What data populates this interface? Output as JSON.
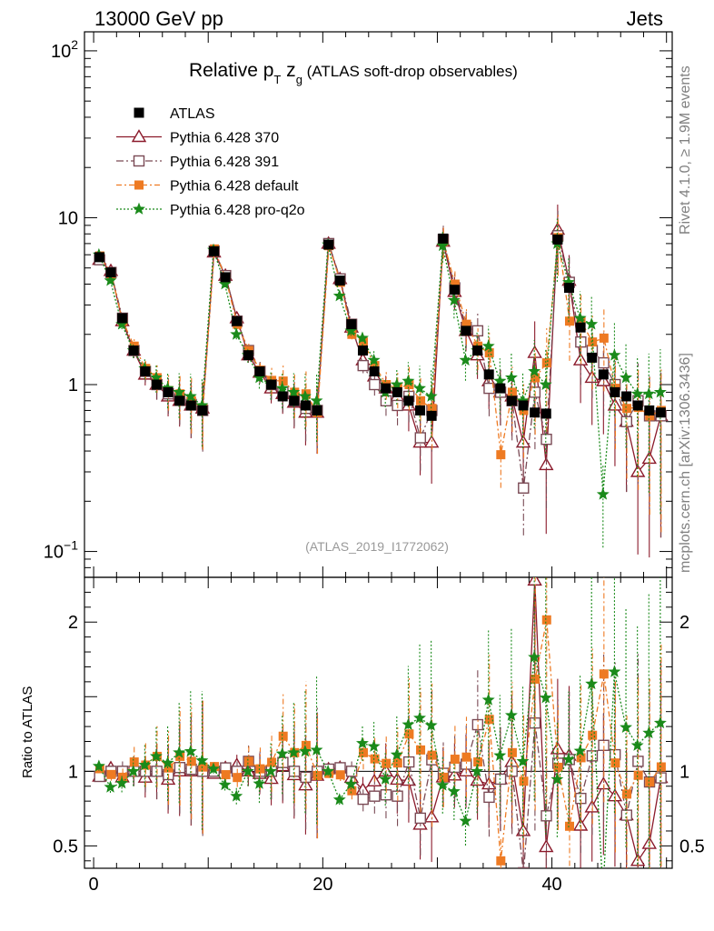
{
  "header": {
    "left": "13000 GeV pp",
    "right": "Jets"
  },
  "side_labels": {
    "top": "Rivet 4.1.0, ≥ 1.9M events",
    "bottom": "mcplots.cern.ch [arXiv:1306.3436]"
  },
  "colors": {
    "atlas": "#000000",
    "p370": "#8b1a2b",
    "p391": "#7a4a55",
    "pdefault": "#ee7a22",
    "pq2o": "#1a8a1a"
  },
  "chart_data": {
    "type": "scatter",
    "title_main": "Relative p",
    "title_sub": "T",
    "title_var": " z",
    "title_var_sub": "g",
    "title_rest": " (ATLAS soft-drop observables)",
    "analysis_tag": "(ATLAS_2019_I1772062)",
    "ratio_ylabel": "Ratio to ATLAS",
    "xlim": [
      -0.8,
      50.5
    ],
    "ylim_main": [
      0.07,
      130
    ],
    "ylim_ratio": [
      0.35,
      2.3
    ],
    "x_ticks": [
      {
        "v": 0,
        "label": "0"
      },
      {
        "v": 20,
        "label": "20"
      },
      {
        "v": 40,
        "label": "40"
      }
    ],
    "y_ticks_main": [
      {
        "v": 0.1,
        "label": "10",
        "sup": "−1"
      },
      {
        "v": 1,
        "label": "1",
        "sup": ""
      },
      {
        "v": 10,
        "label": "10",
        "sup": ""
      },
      {
        "v": 100,
        "label": "10",
        "sup": "2"
      }
    ],
    "y_ticks_ratio": [
      {
        "v": 0.5,
        "label": "0.5"
      },
      {
        "v": 1,
        "label": "1"
      },
      {
        "v": 2,
        "label": "2"
      }
    ],
    "legend": [
      {
        "name": "ATLAS",
        "key": "atlas"
      },
      {
        "name": "Pythia 6.428 370",
        "key": "p370"
      },
      {
        "name": "Pythia 6.428 391",
        "key": "p391"
      },
      {
        "name": "Pythia 6.428 default",
        "key": "pdefault"
      },
      {
        "name": "Pythia 6.428 pro-q2o",
        "key": "pq2o"
      }
    ],
    "x": [
      0.5,
      1.5,
      2.5,
      3.5,
      4.5,
      5.5,
      6.5,
      7.5,
      8.5,
      9.5,
      10.5,
      11.5,
      12.5,
      13.5,
      14.5,
      15.5,
      16.5,
      17.5,
      18.5,
      19.5,
      20.5,
      21.5,
      22.5,
      23.5,
      24.5,
      25.5,
      26.5,
      27.5,
      28.5,
      29.5,
      30.5,
      31.5,
      32.5,
      33.5,
      34.5,
      35.5,
      36.5,
      37.5,
      38.5,
      39.5,
      40.5,
      41.5,
      42.5,
      43.5,
      44.5,
      45.5,
      46.5,
      47.5,
      48.5,
      49.5
    ],
    "atlas": [
      5.8,
      4.7,
      2.5,
      1.6,
      1.2,
      1.0,
      0.9,
      0.8,
      0.75,
      0.7,
      6.3,
      4.4,
      2.4,
      1.5,
      1.2,
      1.0,
      0.85,
      0.8,
      0.75,
      0.7,
      6.9,
      4.2,
      2.3,
      1.6,
      1.2,
      0.95,
      0.9,
      0.8,
      0.7,
      0.65,
      7.5,
      3.7,
      2.1,
      1.6,
      1.15,
      0.95,
      0.8,
      0.75,
      0.68,
      0.67,
      7.4,
      3.8,
      2.2,
      1.45,
      1.15,
      0.9,
      0.85,
      0.75,
      0.7,
      0.68
    ],
    "series": [
      {
        "key": "p370",
        "marker": "tri",
        "dash": "",
        "values": [
          5.6,
          4.8,
          2.4,
          1.6,
          1.15,
          1.0,
          0.85,
          0.8,
          0.75,
          0.72,
          6.2,
          4.5,
          2.5,
          1.5,
          1.18,
          0.95,
          0.88,
          0.78,
          0.68,
          0.68,
          7.0,
          4.3,
          2.2,
          1.4,
          1.12,
          0.95,
          0.85,
          0.75,
          0.45,
          0.45,
          7.2,
          3.6,
          2.1,
          1.5,
          1.05,
          0.9,
          0.85,
          0.45,
          1.55,
          0.33,
          8.5,
          4.2,
          1.4,
          1.1,
          1.05,
          0.75,
          0.6,
          0.3,
          0.36,
          0.65
        ]
      },
      {
        "key": "p391",
        "marker": "sq",
        "dash": "8,3,2,3",
        "values": [
          5.6,
          4.7,
          2.5,
          1.6,
          1.2,
          1.0,
          0.88,
          0.82,
          0.76,
          0.7,
          6.3,
          4.5,
          2.4,
          1.6,
          1.2,
          1.0,
          0.9,
          0.8,
          0.72,
          0.7,
          7.0,
          4.3,
          2.3,
          1.3,
          1.0,
          0.8,
          0.75,
          0.85,
          0.48,
          0.7,
          7.4,
          3.8,
          2.2,
          2.1,
          0.95,
          0.9,
          0.8,
          0.24,
          0.9,
          0.47,
          7.8,
          4.1,
          1.8,
          1.6,
          1.35,
          1.0,
          0.6,
          0.8,
          0.65,
          0.65
        ]
      },
      {
        "key": "pdefault",
        "marker": "fsq",
        "dash": "6,3,2,3",
        "values": [
          5.9,
          4.6,
          2.4,
          1.7,
          1.25,
          1.1,
          0.92,
          0.88,
          0.8,
          0.72,
          6.5,
          4.3,
          2.3,
          1.6,
          1.22,
          1.06,
          1.05,
          0.9,
          0.88,
          0.68,
          6.8,
          4.1,
          2.0,
          1.8,
          1.3,
          1.0,
          0.95,
          1.0,
          0.8,
          0.72,
          7.2,
          4.0,
          2.3,
          1.7,
          1.55,
          0.38,
          0.9,
          0.7,
          1.1,
          1.35,
          7.6,
          2.4,
          2.4,
          1.8,
          1.9,
          0.95,
          0.72,
          0.73,
          0.65,
          0.7
        ]
      },
      {
        "key": "pq2o",
        "marker": "star",
        "dash": "2,2",
        "values": [
          6.0,
          4.2,
          2.3,
          1.6,
          1.25,
          1.1,
          0.95,
          0.9,
          0.85,
          0.75,
          6.4,
          4.0,
          2.0,
          1.5,
          1.1,
          1.0,
          0.95,
          0.9,
          0.85,
          0.8,
          6.9,
          3.4,
          2.1,
          1.9,
          1.4,
          0.9,
          1.0,
          1.05,
          0.95,
          0.85,
          6.8,
          3.2,
          1.4,
          1.6,
          1.7,
          1.05,
          1.1,
          0.8,
          1.2,
          1.0,
          7.0,
          4.1,
          2.5,
          2.3,
          0.22,
          1.5,
          1.1,
          0.88,
          0.88,
          0.9
        ]
      }
    ]
  }
}
